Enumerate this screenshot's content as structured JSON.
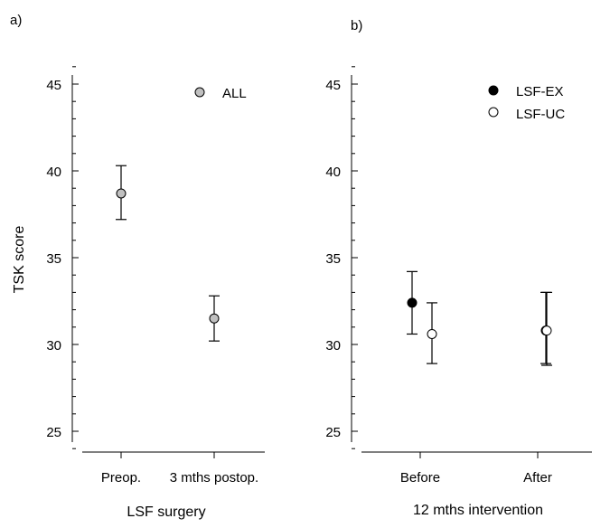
{
  "chart_data": [
    {
      "type": "scatter",
      "panel_label": "a)",
      "title": "",
      "xlabel": "LSF surgery",
      "ylabel": "TSK score",
      "categories": [
        "Preop.",
        "3 mths postop."
      ],
      "ylim": [
        23,
        47
      ],
      "yticks": [
        "25",
        "30",
        "35",
        "40",
        "45"
      ],
      "legend_position": "top-right",
      "series": [
        {
          "name": "ALL",
          "color": "#c0c0c0",
          "values": [
            38.7,
            31.5
          ],
          "err_low": [
            37.2,
            30.2
          ],
          "err_high": [
            40.3,
            32.8
          ]
        }
      ]
    },
    {
      "type": "scatter",
      "panel_label": "b)",
      "title": "",
      "xlabel": "12 mths intervention",
      "ylabel": "",
      "categories": [
        "Before",
        "After"
      ],
      "ylim": [
        23,
        47
      ],
      "yticks": [
        "25",
        "30",
        "35",
        "40",
        "45"
      ],
      "legend_position": "top-right",
      "series": [
        {
          "name": "LSF-EX",
          "color": "#000000",
          "values": [
            32.4,
            30.8
          ],
          "err_low": [
            30.6,
            28.9
          ],
          "err_high": [
            34.2,
            33.0
          ]
        },
        {
          "name": "LSF-UC",
          "color": "#ffffff",
          "values": [
            30.6,
            30.8
          ],
          "err_low": [
            28.9,
            28.8
          ],
          "err_high": [
            32.4,
            33.0
          ]
        }
      ]
    }
  ]
}
